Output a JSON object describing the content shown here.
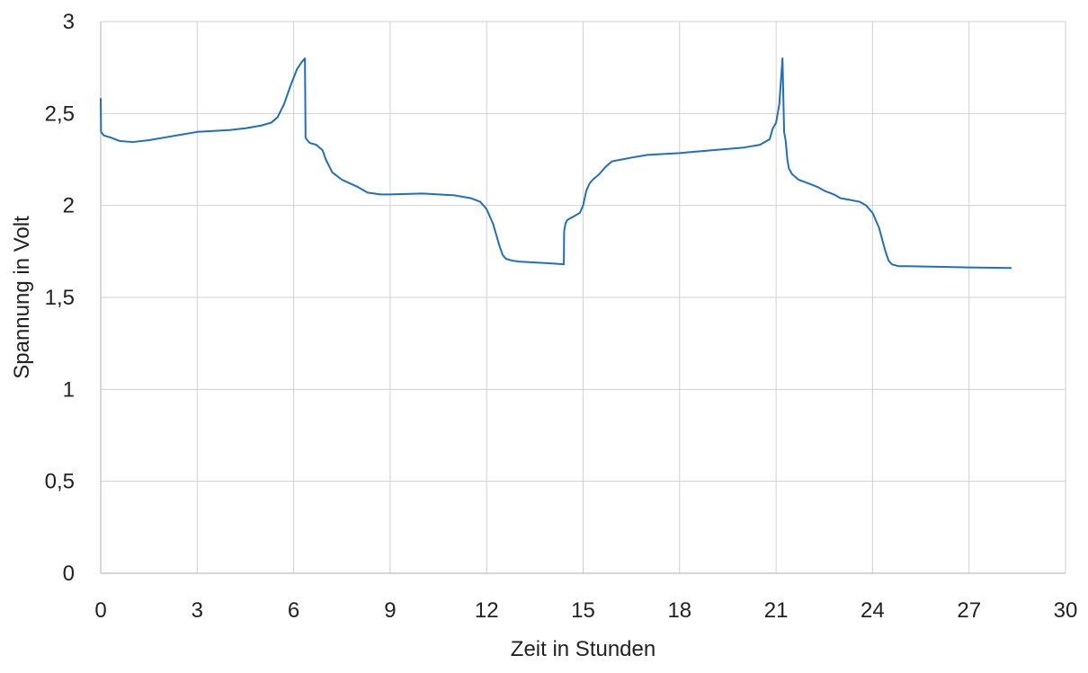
{
  "chart_data": {
    "type": "line",
    "title": "",
    "xlabel": "Zeit in Stunden",
    "ylabel": "Spannung in Volt",
    "xlim": [
      0,
      30
    ],
    "ylim": [
      0,
      3
    ],
    "x_ticks": [
      0,
      3,
      6,
      9,
      12,
      15,
      18,
      21,
      24,
      27,
      30
    ],
    "y_ticks": [
      0,
      0.5,
      1,
      1.5,
      2,
      2.5,
      3
    ],
    "x_tick_labels": [
      "0",
      "3",
      "6",
      "9",
      "12",
      "15",
      "18",
      "21",
      "24",
      "27",
      "30"
    ],
    "y_tick_labels": [
      "0",
      "0,5",
      "1",
      "1,5",
      "2",
      "2,5",
      "3"
    ],
    "grid": true,
    "legend": "none",
    "colors": {
      "series": "#1f6fbf",
      "grid": "#d0d0d0",
      "axis": "#bfbfbf"
    },
    "series": [
      {
        "x": [
          0.0,
          0.01,
          0.05,
          0.1,
          0.3,
          0.6,
          1.0,
          1.5,
          2.0,
          2.5,
          3.0,
          3.5,
          4.0,
          4.5,
          5.0,
          5.3,
          5.5,
          5.7,
          5.9,
          6.1,
          6.25,
          6.35,
          6.37,
          6.4,
          6.5,
          6.7,
          6.9,
          7.0,
          7.2,
          7.5,
          8.0,
          8.3,
          8.7,
          9.0,
          10.0,
          11.0,
          11.5,
          11.8,
          12.0,
          12.2,
          12.4,
          12.5,
          12.6,
          12.8,
          13.0,
          13.5,
          14.0,
          14.4,
          14.41,
          14.45,
          14.5,
          14.7,
          14.9,
          15.0,
          15.1,
          15.2,
          15.3,
          15.5,
          15.7,
          15.9,
          16.2,
          16.5,
          17.0,
          18.0,
          19.0,
          20.0,
          20.5,
          20.8,
          20.9,
          21.0,
          21.1,
          21.2,
          21.25,
          21.3,
          21.35,
          21.4,
          21.5,
          21.7,
          22.0,
          22.3,
          22.5,
          22.8,
          23.0,
          23.3,
          23.6,
          23.8,
          24.0,
          24.2,
          24.4,
          24.5,
          24.6,
          24.8,
          25.0,
          26.0,
          27.0,
          28.3
        ],
        "y": [
          2.58,
          2.4,
          2.39,
          2.38,
          2.37,
          2.35,
          2.345,
          2.355,
          2.37,
          2.385,
          2.4,
          2.405,
          2.41,
          2.42,
          2.435,
          2.45,
          2.48,
          2.55,
          2.65,
          2.74,
          2.78,
          2.8,
          2.37,
          2.36,
          2.34,
          2.33,
          2.3,
          2.25,
          2.18,
          2.14,
          2.1,
          2.07,
          2.06,
          2.06,
          2.065,
          2.055,
          2.04,
          2.02,
          1.98,
          1.9,
          1.78,
          1.73,
          1.71,
          1.7,
          1.695,
          1.69,
          1.685,
          1.68,
          1.86,
          1.9,
          1.92,
          1.94,
          1.96,
          2.0,
          2.08,
          2.12,
          2.14,
          2.17,
          2.21,
          2.24,
          2.25,
          2.26,
          2.275,
          2.285,
          2.3,
          2.315,
          2.33,
          2.36,
          2.42,
          2.45,
          2.55,
          2.8,
          2.4,
          2.35,
          2.25,
          2.2,
          2.17,
          2.14,
          2.12,
          2.1,
          2.08,
          2.06,
          2.04,
          2.03,
          2.02,
          2.0,
          1.96,
          1.88,
          1.75,
          1.7,
          1.68,
          1.67,
          1.67,
          1.667,
          1.663,
          1.66
        ]
      }
    ]
  }
}
